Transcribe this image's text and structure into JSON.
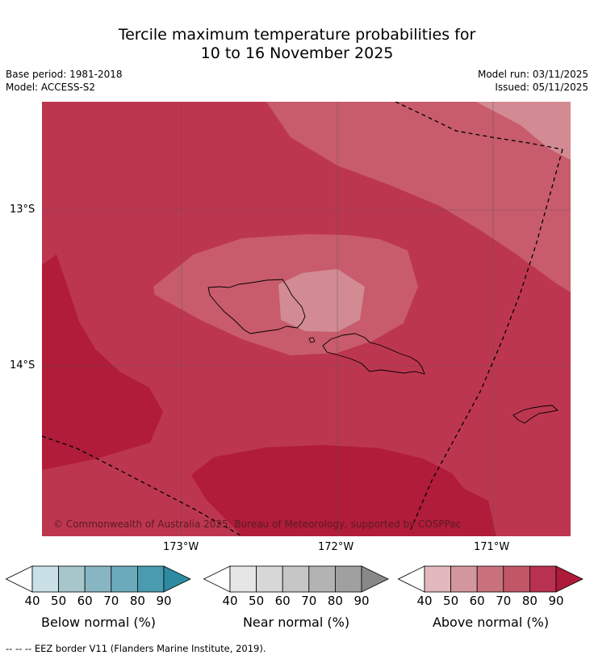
{
  "title": {
    "line1": "Tercile maximum temperature probabilities for",
    "line2": "10 to 16 November 2025"
  },
  "meta": {
    "base_period": "Base period: 1981-2018",
    "model": "Model: ACCESS-S2",
    "model_run": "Model run: 03/11/2025",
    "issued": "Issued: 05/11/2025"
  },
  "map": {
    "lat_ticks": [
      "13°S",
      "14°S"
    ],
    "lon_ticks": [
      "173°W",
      "172°W",
      "171°W"
    ],
    "copyright": "© Commonwealth of Australia 2025, Bureau of Meteorology, supported by COSPPac",
    "colors": {
      "p90": "#b01c3a",
      "p80": "#bd3650",
      "p70": "#c85c6c",
      "p60": "#d28a93",
      "border": "#000000",
      "grid": "#555555"
    }
  },
  "colorbars": [
    {
      "label": "Below normal (%)",
      "ticks": [
        "40",
        "50",
        "60",
        "70",
        "80",
        "90"
      ],
      "colors": [
        "#ffffff",
        "#c9e1e6",
        "#a7c6cc",
        "#88b5c2",
        "#6aaabb",
        "#4a9baf",
        "#2e8aa0"
      ]
    },
    {
      "label": "Near normal (%)",
      "ticks": [
        "40",
        "50",
        "60",
        "70",
        "80",
        "90"
      ],
      "colors": [
        "#ffffff",
        "#e6e6e6",
        "#d7d7d7",
        "#c6c6c6",
        "#b3b3b3",
        "#a0a0a0",
        "#888888"
      ]
    },
    {
      "label": "Above normal (%)",
      "ticks": [
        "40",
        "50",
        "60",
        "70",
        "80",
        "90"
      ],
      "colors": [
        "#ffffff",
        "#e2b8bd",
        "#d4969e",
        "#c9727d",
        "#c15667",
        "#b83150",
        "#ad1a3a"
      ]
    }
  ],
  "footer": "--  --  -- EEZ border V11 (Flanders Marine Institute, 2019)."
}
